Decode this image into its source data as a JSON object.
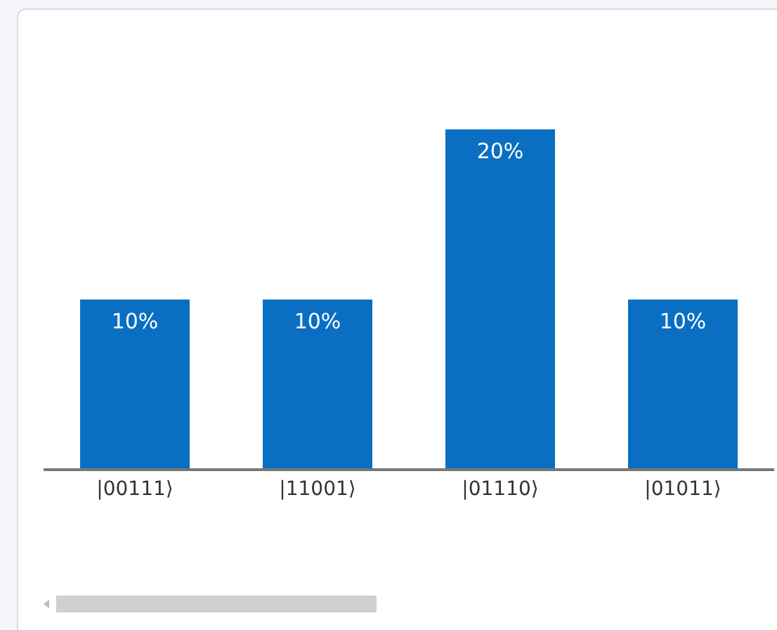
{
  "chart_data": {
    "type": "bar",
    "categories": [
      "|00111⟩",
      "|11001⟩",
      "|01110⟩",
      "|01011⟩"
    ],
    "values": [
      10,
      10,
      20,
      10
    ],
    "value_labels": [
      "10%",
      "10%",
      "20%",
      "10%"
    ],
    "color": "#0a6fc2",
    "tick_labels": "x"
  }
}
